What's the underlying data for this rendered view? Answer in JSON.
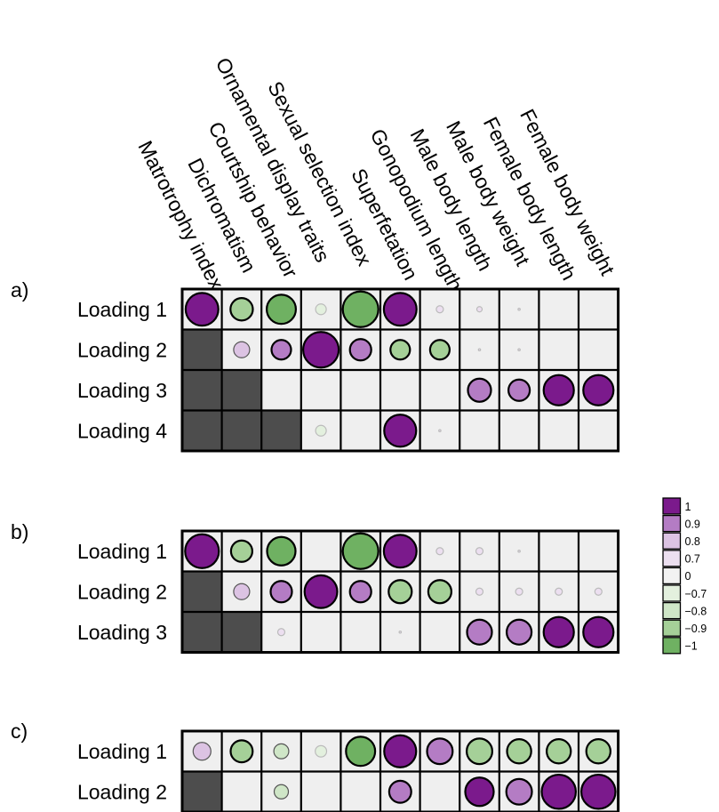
{
  "colors": {
    "cell_bg": "#efefef",
    "masked": "#4d4d4d",
    "purple_strong": "#7b1a8c",
    "purple_mid": "#b47cc4",
    "purple_light": "#dcc3e3",
    "purple_faint": "#ecdff0",
    "green_strong": "#6fb162",
    "green_mid": "#a5d098",
    "green_light": "#cfe6c7",
    "green_faint": "#e3f0de",
    "grid": "#000000"
  },
  "chart_data": {
    "type": "heatmap",
    "columns": [
      "Matrotrophy index",
      "Dichromatism",
      "Courtship behavior",
      "Ornamental display traits",
      "Sexual selection index",
      "Superfetation",
      "Gonopodium length",
      "Male body length",
      "Male body weight",
      "Female body length",
      "Female body weight"
    ],
    "legend": {
      "labels": [
        "1",
        "0.9",
        "0.8",
        "0.7",
        "0",
        "−0.7",
        "−0.8",
        "−0.9",
        "−1"
      ],
      "colors": [
        "#7b1a8c",
        "#b47cc4",
        "#dcc3e3",
        "#ecdff0",
        "#f2f2f2",
        "#e3f0de",
        "#cfe6c7",
        "#a5d098",
        "#6fb162"
      ]
    },
    "panels": [
      {
        "label": "a)",
        "rows": [
          {
            "name": "Loading 1",
            "values": [
              0.92,
              -0.63,
              -0.82,
              -0.3,
              -1.0,
              0.92,
              0.2,
              0.15,
              0.05,
              0,
              0
            ]
          },
          {
            "name": "Loading 2",
            "values": [
              null,
              0.45,
              0.55,
              1.0,
              0.6,
              -0.55,
              -0.55,
              0.05,
              0.05,
              0,
              0
            ]
          },
          {
            "name": "Loading 3",
            "values": [
              null,
              null,
              0,
              0,
              0,
              0,
              0,
              0.65,
              0.6,
              0.85,
              0.85
            ]
          },
          {
            "name": "Loading 4",
            "values": [
              null,
              null,
              null,
              -0.3,
              0,
              0.9,
              0.05,
              0,
              0,
              0,
              0
            ]
          }
        ]
      },
      {
        "label": "b)",
        "rows": [
          {
            "name": "Loading 1",
            "values": [
              0.95,
              -0.6,
              -0.8,
              0,
              -1.0,
              0.92,
              0.2,
              0.2,
              0.05,
              0,
              0
            ]
          },
          {
            "name": "Loading 2",
            "values": [
              null,
              0.45,
              0.6,
              0.92,
              0.6,
              -0.65,
              -0.65,
              0.2,
              0.2,
              0.2,
              0.2
            ]
          },
          {
            "name": "Loading 3",
            "values": [
              null,
              null,
              0.2,
              0,
              0,
              0.05,
              0,
              0.7,
              0.7,
              0.85,
              0.85
            ]
          }
        ]
      },
      {
        "label": "c)",
        "rows": [
          {
            "name": "Loading 1",
            "values": [
              0.5,
              -0.62,
              -0.42,
              -0.32,
              -0.82,
              0.9,
              0.72,
              -0.72,
              -0.68,
              -0.68,
              -0.68
            ]
          },
          {
            "name": "Loading 2",
            "values": [
              null,
              0,
              -0.4,
              0,
              0,
              0.62,
              0,
              0.8,
              0.72,
              0.96,
              0.96
            ]
          }
        ]
      }
    ]
  }
}
